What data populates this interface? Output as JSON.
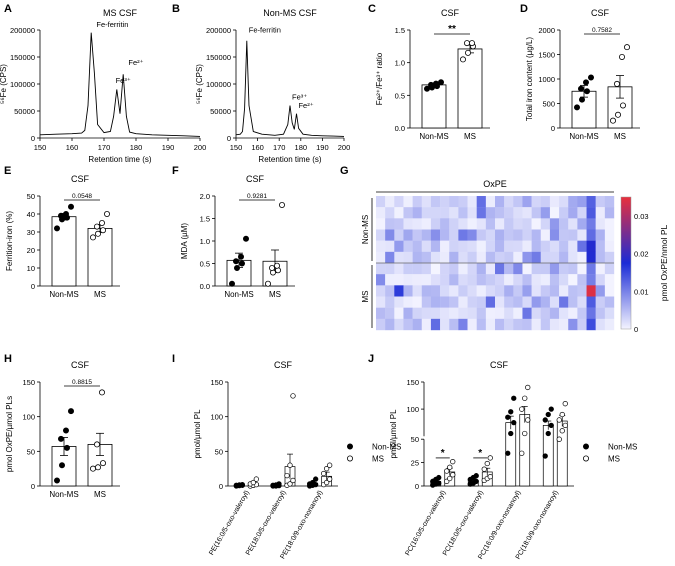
{
  "colors": {
    "line": "#000000",
    "filled": "#000000",
    "open": "#ffffff",
    "heat_low": "#f4f4ff",
    "heat_mid": "#1a2bd6",
    "heat_high": "#e8303c"
  },
  "chart_data": [
    {
      "id": "A",
      "label": "A",
      "type": "line",
      "title": "MS CSF",
      "ylabel": "⁵⁶Fe (CPS)",
      "xlabel": "Retention time (s)",
      "xlim": [
        150,
        200
      ],
      "ylim": [
        0,
        200000
      ],
      "xticks": [
        150,
        160,
        170,
        180,
        190,
        200
      ],
      "yticks": [
        0,
        50000,
        100000,
        150000,
        200000
      ],
      "x": [
        150,
        155,
        160,
        163,
        164,
        165,
        166,
        167,
        168,
        170,
        172,
        173,
        174,
        175,
        176,
        177,
        178,
        180,
        185,
        190,
        195,
        200
      ],
      "y": [
        6000,
        7000,
        8000,
        9000,
        14000,
        60000,
        195000,
        120000,
        25000,
        10000,
        12000,
        40000,
        90000,
        45000,
        118000,
        40000,
        11000,
        8000,
        6000,
        5000,
        4000,
        3000
      ],
      "annotations": [
        {
          "text": "Fe-ferritin",
          "x": 167,
          "y": 200000
        },
        {
          "text": "Fe³⁺",
          "x": 173,
          "y": 96000
        },
        {
          "text": "Fe²⁺",
          "x": 177,
          "y": 130000
        }
      ]
    },
    {
      "id": "B",
      "label": "B",
      "type": "line",
      "title": "Non-MS CSF",
      "ylabel": "⁵⁶Fe (CPS)",
      "xlabel": "Retention time (s)",
      "xlim": [
        150,
        200
      ],
      "ylim": [
        0,
        200000
      ],
      "xticks": [
        150,
        160,
        170,
        180,
        190,
        200
      ],
      "yticks": [
        0,
        50000,
        100000,
        150000,
        200000
      ],
      "x": [
        150,
        152,
        153,
        154,
        155,
        156,
        158,
        162,
        168,
        172,
        174,
        175,
        176,
        177,
        178,
        179,
        181,
        185,
        190,
        195,
        200
      ],
      "y": [
        6000,
        7000,
        12000,
        55000,
        180000,
        60000,
        12000,
        7000,
        5000,
        7000,
        25000,
        60000,
        28000,
        16000,
        45000,
        18000,
        7000,
        5000,
        4000,
        3500,
        3000
      ],
      "annotations": [
        {
          "text": "Fe-ferritin",
          "x": 155,
          "y": 190000
        },
        {
          "text": "Fe³⁺",
          "x": 175,
          "y": 66000
        },
        {
          "text": "Fe²⁺",
          "x": 178,
          "y": 50000
        }
      ]
    },
    {
      "id": "C",
      "label": "C",
      "type": "bar",
      "title": "CSF",
      "ylabel": "Fe²⁺/Fe³⁺ ratio",
      "categories": [
        "Non-MS",
        "MS"
      ],
      "values": [
        0.66,
        1.21
      ],
      "sem": [
        0.03,
        0.06
      ],
      "ylim": [
        0,
        1.5
      ],
      "yticks": [
        0,
        0.5,
        1,
        1.5
      ],
      "ytick_labels": [
        "0.0",
        "0.5",
        "1.0",
        "1.5"
      ],
      "points": [
        [
          0.6,
          0.62,
          0.64,
          0.66,
          0.68,
          0.7
        ],
        [
          1.05,
          1.15,
          1.25,
          1.3,
          1.3
        ]
      ],
      "significance": "**"
    },
    {
      "id": "D",
      "label": "D",
      "type": "bar",
      "title": "CSF",
      "ylabel": "Total iron content (µg/L)",
      "categories": [
        "Non-MS",
        "MS"
      ],
      "values": [
        750,
        840
      ],
      "sem": [
        120,
        230
      ],
      "ylim": [
        0,
        2000
      ],
      "yticks": [
        0,
        500,
        1000,
        1500,
        2000
      ],
      "ytick_labels": [
        "0",
        "500",
        "1000",
        "1500",
        "2000"
      ],
      "points": [
        [
          420,
          580,
          750,
          800,
          930,
          1030
        ],
        [
          150,
          270,
          460,
          900,
          1450,
          1650
        ]
      ],
      "significance": "0.7582"
    },
    {
      "id": "E",
      "label": "E",
      "type": "bar",
      "title": "CSF",
      "ylabel": "Ferrition-iron (%)",
      "categories": [
        "Non-MS",
        "MS"
      ],
      "values": [
        38.5,
        32
      ],
      "sem": [
        1.8,
        2.2
      ],
      "ylim": [
        0,
        50
      ],
      "yticks": [
        0,
        10,
        20,
        30,
        40,
        50
      ],
      "ytick_labels": [
        "0",
        "10",
        "20",
        "30",
        "40",
        "50"
      ],
      "points": [
        [
          32,
          37,
          38,
          39,
          40,
          44
        ],
        [
          27,
          29,
          31,
          33,
          35,
          40
        ]
      ],
      "significance": "0.0548"
    },
    {
      "id": "F",
      "label": "F",
      "type": "bar",
      "title": "CSF",
      "ylabel": "MDA (µM)",
      "categories": [
        "Non-MS",
        "MS"
      ],
      "values": [
        0.57,
        0.55
      ],
      "sem": [
        0.16,
        0.25
      ],
      "ylim": [
        0,
        2.0
      ],
      "yticks": [
        0,
        0.5,
        1,
        1.5,
        2
      ],
      "ytick_labels": [
        "0.0",
        "0.5",
        "1.0",
        "1.5",
        "2.0"
      ],
      "points": [
        [
          0.05,
          0.4,
          0.5,
          0.55,
          0.65,
          1.05
        ],
        [
          0.05,
          0.3,
          0.35,
          0.4,
          0.45,
          1.8
        ]
      ],
      "significance": "0.9281"
    },
    {
      "id": "G",
      "label": "G",
      "type": "heatmap",
      "column_label": "OxPE",
      "row_groups": [
        "Non-MS",
        "MS"
      ],
      "rows_per_group": 6,
      "columns": 26,
      "colorbar_label": "pmol OxPE/nmol PL",
      "colorbar_ticks": [
        0,
        0.01,
        0.02,
        0.03
      ],
      "colorbar_tick_labels": [
        "0",
        "0.01",
        "0.02",
        "0.03"
      ],
      "vmax": 0.035
    },
    {
      "id": "H",
      "label": "H",
      "type": "bar",
      "title": "CSF",
      "ylabel": "pmol OxPE/µmol PLs",
      "categories": [
        "Non-MS",
        "MS"
      ],
      "values": [
        57,
        60
      ],
      "sem": [
        13,
        16
      ],
      "ylim": [
        0,
        150
      ],
      "yticks": [
        0,
        50,
        100,
        150
      ],
      "ytick_labels": [
        "0",
        "50",
        "100",
        "150"
      ],
      "points": [
        [
          8,
          30,
          55,
          68,
          80,
          108
        ],
        [
          25,
          27,
          33,
          60,
          135
        ]
      ],
      "significance": "0.8815"
    },
    {
      "id": "I",
      "label": "I",
      "type": "bar",
      "title": "CSF",
      "ylabel": "pmol/µmol PL",
      "categories": [
        "PE(16:0/5-oxo-valeroyl)",
        "PE(18:0/5-oxo-valeroyl)",
        "PE(18:0/9-oxo-nonanoyl)"
      ],
      "series": [
        {
          "name": "Non-MS",
          "values": [
            1,
            1,
            4
          ],
          "sem": [
            0.3,
            0.4,
            1.5
          ]
        },
        {
          "name": "MS",
          "values": [
            4,
            28,
            14
          ],
          "sem": [
            1.5,
            18,
            6
          ]
        }
      ],
      "ylim": [
        0,
        150
      ],
      "yticks": [
        0,
        50,
        100,
        150
      ],
      "ytick_labels": [
        "0",
        "50",
        "100",
        "150"
      ],
      "points": [
        [
          [
            0,
            0.5,
            1,
            1,
            1.5,
            2
          ],
          [
            0,
            1,
            2,
            3,
            5,
            10
          ]
        ],
        [
          [
            0,
            0,
            0.5,
            1,
            1.5,
            3
          ],
          [
            1,
            3,
            8,
            15,
            30,
            130
          ]
        ],
        [
          [
            0,
            1,
            2,
            3,
            5,
            10
          ],
          [
            2,
            5,
            10,
            18,
            25,
            30
          ]
        ]
      ],
      "legend": [
        "Non-MS",
        "MS"
      ]
    },
    {
      "id": "J",
      "label": "J",
      "type": "bar",
      "title": "CSF",
      "ylabel": "pmol/µmol PL",
      "categories": [
        "PC(16:0/5-oxo-valeroyl)",
        "PC(18:0/5-oxo-valeroyl)",
        "PC(16:0/9-oxo-nonanoyl)",
        "PC(18:0/9-oxo-nonanoyl)"
      ],
      "series": [
        {
          "name": "Non-MS",
          "values": [
            5,
            6,
            75,
            70
          ],
          "sem": [
            1,
            1.5,
            12,
            8
          ]
        },
        {
          "name": "MS",
          "values": [
            15,
            15,
            90,
            78
          ],
          "sem": [
            4,
            4,
            15,
            10
          ]
        }
      ],
      "ylim": [
        0,
        150
      ],
      "ybreak": [
        50,
        100
      ],
      "yticks": [
        0,
        25,
        50,
        100,
        150
      ],
      "ytick_labels": [
        "0",
        "25",
        "50",
        "100",
        "150"
      ],
      "points": [
        [
          [
            1,
            2,
            3,
            5,
            7,
            9
          ],
          [
            5,
            8,
            12,
            16,
            20,
            26
          ]
        ],
        [
          [
            2,
            3,
            5,
            7,
            9,
            11
          ],
          [
            6,
            8,
            10,
            18,
            24,
            30
          ]
        ],
        [
          [
            35,
            55,
            75,
            85,
            95,
            120
          ],
          [
            35,
            55,
            80,
            100,
            120,
            140
          ]
        ],
        [
          [
            32,
            55,
            70,
            80,
            90,
            100
          ],
          [
            50,
            60,
            70,
            80,
            90,
            110
          ]
        ]
      ],
      "significance": [
        "*",
        "*"
      ],
      "legend": [
        "Non-MS",
        "MS"
      ]
    }
  ]
}
